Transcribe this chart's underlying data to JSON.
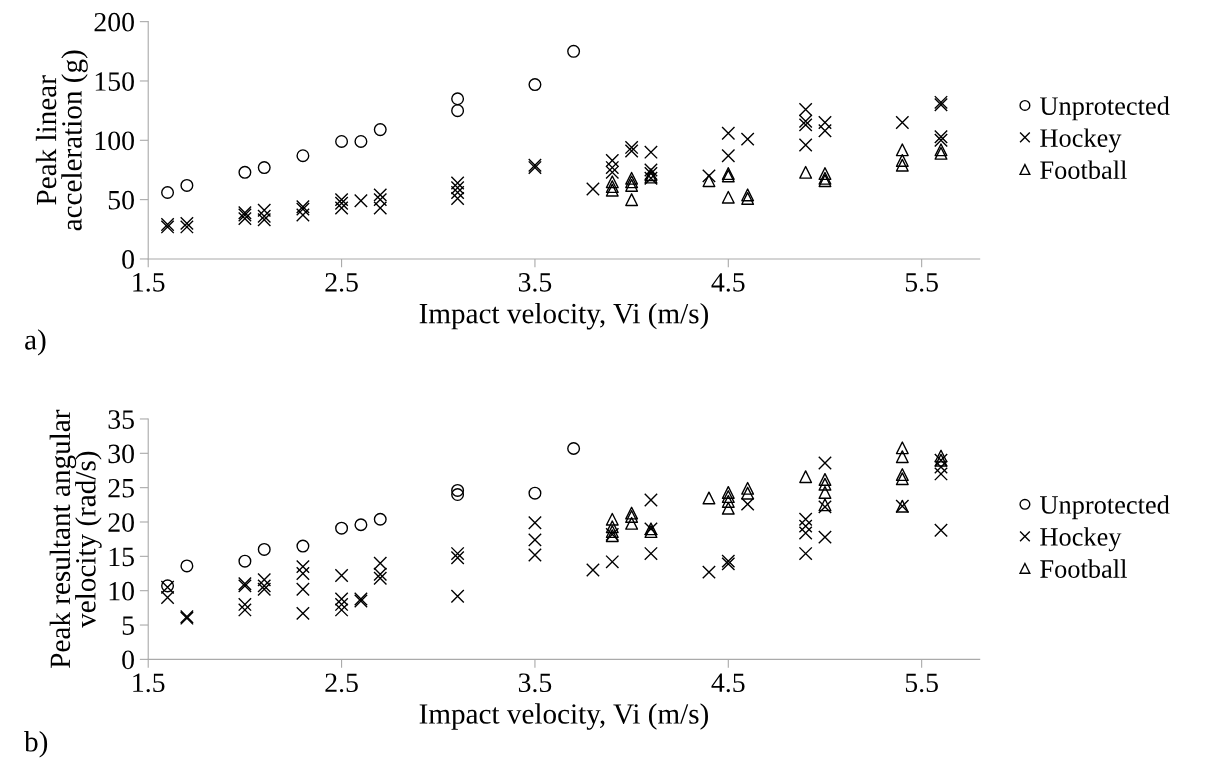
{
  "chart_data": [
    {
      "type": "scatter",
      "xlabel": "Impact velocity, Vi (m/s)",
      "ylabel": "Peak linear acceleration (g)",
      "annotations": [
        "a)"
      ],
      "xlim": [
        1.5,
        5.8
      ],
      "xticks": [
        1.5,
        2.5,
        3.5,
        4.5,
        5.5
      ],
      "ylim": [
        0,
        200
      ],
      "yticks": [
        0,
        50,
        100,
        150,
        200
      ],
      "legend": "right",
      "grid": false,
      "series": [
        {
          "name": "Unprotected",
          "color": "#000000",
          "marker": "circle",
          "x": [
            1.6,
            1.7,
            2.0,
            2.1,
            2.3,
            2.5,
            2.6,
            2.7,
            3.1,
            3.1,
            3.5,
            3.7
          ],
          "values": [
            56,
            62,
            73,
            77,
            87,
            99,
            99,
            109,
            125,
            135,
            147,
            175
          ]
        },
        {
          "name": "Hockey",
          "color": "#000000",
          "marker": "cross",
          "x": [
            1.6,
            1.6,
            1.7,
            1.7,
            2.0,
            2.0,
            2.0,
            2.1,
            2.1,
            2.1,
            2.3,
            2.3,
            2.3,
            2.5,
            2.5,
            2.5,
            2.6,
            2.7,
            2.7,
            2.7,
            3.1,
            3.1,
            3.1,
            3.1,
            3.5,
            3.5,
            3.8,
            3.9,
            3.9,
            3.9,
            4.0,
            4.0,
            4.1,
            4.1,
            4.1,
            4.1,
            4.4,
            4.5,
            4.5,
            4.6,
            4.9,
            4.9,
            4.9,
            4.9,
            5.0,
            5.0,
            5.4,
            5.6,
            5.6,
            5.6,
            5.6
          ],
          "values": [
            27,
            29,
            27,
            30,
            34,
            37,
            39,
            33,
            36,
            41,
            37,
            42,
            44,
            43,
            47,
            50,
            49,
            43,
            50,
            54,
            51,
            56,
            60,
            64,
            77,
            79,
            59,
            73,
            77,
            83,
            91,
            94,
            68,
            72,
            75,
            90,
            70,
            87,
            106,
            101,
            96,
            113,
            116,
            126,
            108,
            115,
            115,
            100,
            103,
            130,
            132
          ]
        },
        {
          "name": "Football",
          "color": "#000000",
          "marker": "triangle",
          "x": [
            3.9,
            3.9,
            3.9,
            4.0,
            4.0,
            4.0,
            4.0,
            4.1,
            4.1,
            4.4,
            4.5,
            4.5,
            4.5,
            4.6,
            4.6,
            4.9,
            5.0,
            5.0,
            5.0,
            5.4,
            5.4,
            5.4,
            5.6,
            5.6
          ],
          "values": [
            58,
            61,
            65,
            50,
            62,
            65,
            68,
            69,
            71,
            66,
            70,
            72,
            52,
            51,
            54,
            73,
            66,
            68,
            72,
            79,
            83,
            92,
            89,
            92
          ]
        }
      ]
    },
    {
      "type": "scatter",
      "xlabel": "Impact velocity, Vi (m/s)",
      "ylabel": "Peak resultant angular velocity (rad/s)",
      "annotations": [
        "b)"
      ],
      "xlim": [
        1.5,
        5.8
      ],
      "xticks": [
        1.5,
        2.5,
        3.5,
        4.5,
        5.5
      ],
      "ylim": [
        0,
        35
      ],
      "yticks": [
        0,
        5,
        10,
        15,
        20,
        25,
        30,
        35
      ],
      "legend": "right",
      "grid": false,
      "series": [
        {
          "name": "Unprotected",
          "color": "#000000",
          "marker": "circle",
          "x": [
            1.6,
            1.7,
            2.0,
            2.1,
            2.3,
            2.5,
            2.6,
            2.7,
            3.1,
            3.1,
            3.5,
            3.7
          ],
          "values": [
            10.7,
            13.6,
            14.3,
            16.0,
            16.5,
            19.1,
            19.6,
            20.4,
            24.0,
            24.6,
            24.2,
            30.7
          ]
        },
        {
          "name": "Hockey",
          "color": "#000000",
          "marker": "cross",
          "x": [
            1.6,
            1.6,
            1.7,
            1.7,
            2.0,
            2.0,
            2.0,
            2.0,
            2.1,
            2.1,
            2.1,
            2.3,
            2.3,
            2.3,
            2.3,
            2.5,
            2.5,
            2.5,
            2.5,
            2.6,
            2.6,
            2.7,
            2.7,
            2.7,
            3.1,
            3.1,
            3.1,
            3.5,
            3.5,
            3.5,
            3.8,
            3.9,
            3.9,
            4.1,
            4.1,
            4.1,
            4.4,
            4.5,
            4.5,
            4.6,
            4.9,
            4.9,
            4.9,
            4.9,
            5.0,
            5.0,
            5.0,
            5.4,
            5.6,
            5.6,
            5.6,
            5.6
          ],
          "values": [
            9.0,
            10.5,
            6.0,
            6.2,
            7.2,
            8.0,
            10.7,
            11.0,
            10.2,
            10.7,
            11.6,
            6.7,
            10.2,
            12.5,
            13.5,
            7.2,
            8.0,
            8.8,
            12.2,
            8.5,
            8.8,
            11.8,
            12.4,
            14.0,
            9.2,
            14.8,
            15.4,
            15.2,
            17.4,
            19.9,
            13.0,
            14.2,
            18.2,
            15.4,
            19.0,
            23.2,
            12.7,
            13.9,
            14.3,
            22.6,
            15.4,
            18.4,
            19.4,
            20.4,
            17.8,
            22.2,
            28.6,
            22.3,
            18.8,
            27.0,
            28.0,
            29.0
          ]
        },
        {
          "name": "Football",
          "color": "#000000",
          "marker": "triangle",
          "x": [
            3.9,
            3.9,
            3.9,
            3.9,
            4.0,
            4.0,
            4.0,
            4.1,
            4.1,
            4.4,
            4.5,
            4.5,
            4.5,
            4.5,
            4.6,
            4.6,
            4.9,
            5.0,
            5.0,
            5.0,
            5.0,
            5.4,
            5.4,
            5.4,
            5.4,
            5.4,
            5.6,
            5.6
          ],
          "values": [
            18.0,
            18.6,
            19.3,
            20.4,
            19.8,
            20.8,
            21.3,
            18.6,
            19.0,
            23.5,
            22.0,
            23.0,
            23.7,
            24.3,
            24.2,
            24.9,
            26.6,
            22.5,
            24.3,
            25.5,
            26.2,
            22.3,
            26.3,
            26.9,
            29.5,
            30.8,
            29.0,
            29.6
          ]
        }
      ]
    }
  ]
}
